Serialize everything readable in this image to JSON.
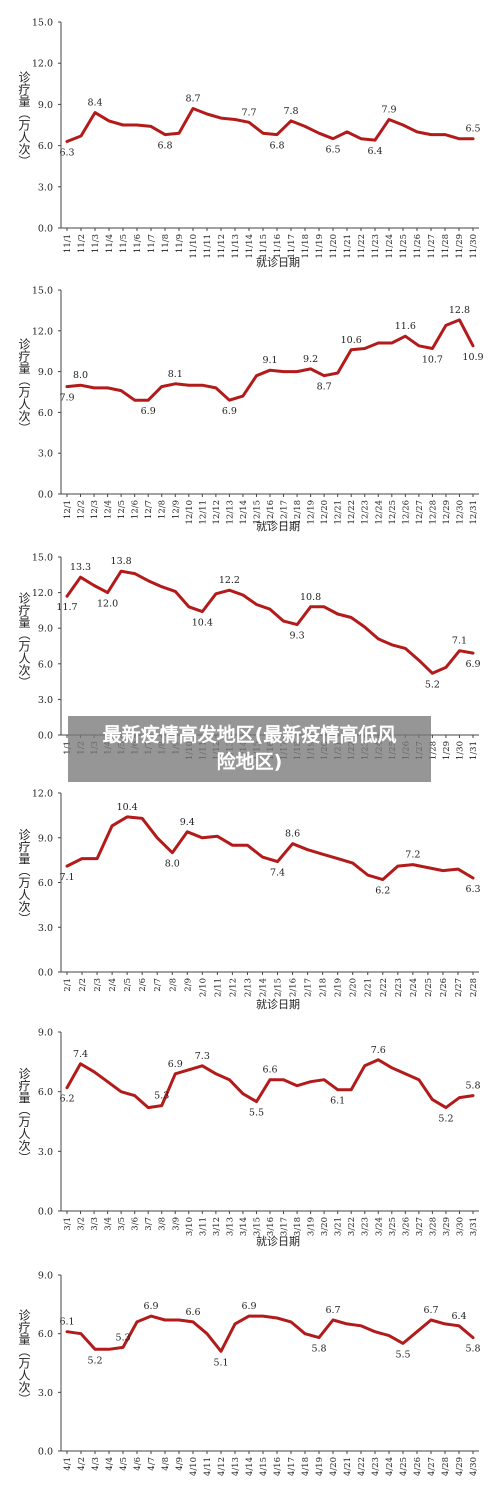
{
  "overlay": {
    "line1": "最新疫情高发地区(最新疫情高低风",
    "line2": "险地区)"
  },
  "chart_data": [
    {
      "type": "line",
      "ylabel": "诊疗量（万人次）",
      "xlabel": "就诊日期",
      "ylim": [
        0,
        15
      ],
      "yticks": [
        "0.0",
        "3.0",
        "6.0",
        "9.0",
        "12.0",
        "15.0"
      ],
      "color": "#b31b1b",
      "categories": [
        "11/1",
        "11/2",
        "11/3",
        "11/4",
        "11/5",
        "11/6",
        "11/7",
        "11/8",
        "11/9",
        "11/10",
        "11/11",
        "11/12",
        "11/13",
        "11/14",
        "11/15",
        "11/16",
        "11/17",
        "11/18",
        "11/19",
        "11/20",
        "11/21",
        "11/22",
        "11/23",
        "11/24",
        "11/25",
        "11/26",
        "11/27",
        "11/28",
        "11/29",
        "11/30"
      ],
      "values": [
        6.3,
        6.7,
        8.4,
        7.8,
        7.5,
        7.5,
        7.4,
        6.8,
        6.9,
        8.7,
        8.3,
        8.0,
        7.9,
        7.7,
        6.9,
        6.8,
        7.8,
        7.4,
        6.9,
        6.5,
        7.0,
        6.5,
        6.4,
        7.9,
        7.5,
        7.0,
        6.8,
        6.8,
        6.5,
        6.5
      ],
      "data_labels": {
        "0": "6.3",
        "2": "8.4",
        "7": "6.8",
        "9": "8.7",
        "13": "7.7",
        "15": "6.8",
        "16": "7.8",
        "19": "6.5",
        "22": "6.4",
        "23": "7.9",
        "29": "6.5"
      }
    },
    {
      "type": "line",
      "ylabel": "诊疗量（万人次）",
      "xlabel": "就诊日期",
      "ylim": [
        0,
        15
      ],
      "yticks": [
        "0.0",
        "3.0",
        "6.0",
        "9.0",
        "12.0",
        "15.0"
      ],
      "color": "#b31b1b",
      "categories": [
        "12/1",
        "12/2",
        "12/3",
        "12/4",
        "12/5",
        "12/6",
        "12/7",
        "12/8",
        "12/9",
        "12/10",
        "12/11",
        "12/12",
        "12/13",
        "12/14",
        "12/15",
        "12/16",
        "12/17",
        "12/18",
        "12/19",
        "12/20",
        "12/21",
        "12/22",
        "12/23",
        "12/24",
        "12/25",
        "12/26",
        "12/27",
        "12/28",
        "12/29",
        "12/30",
        "12/31"
      ],
      "values": [
        7.9,
        8.0,
        7.8,
        7.8,
        7.6,
        6.9,
        6.9,
        7.9,
        8.1,
        8.0,
        8.0,
        7.8,
        6.9,
        7.2,
        8.7,
        9.1,
        9.0,
        9.0,
        9.2,
        8.7,
        8.9,
        10.6,
        10.7,
        11.1,
        11.1,
        11.6,
        10.9,
        10.7,
        12.4,
        12.8,
        10.9
      ],
      "data_labels": {
        "0": "7.9",
        "1": "8.0",
        "6": "6.9",
        "8": "8.1",
        "12": "6.9",
        "15": "9.1",
        "18": "9.2",
        "19": "8.7",
        "21": "10.6",
        "25": "11.6",
        "27": "10.7",
        "29": "12.8",
        "30": "10.9"
      }
    },
    {
      "type": "line",
      "ylabel": "诊疗量（万人次）",
      "xlabel": "",
      "ylim": [
        0,
        15
      ],
      "yticks": [
        "0.0",
        "3.0",
        "6.0",
        "9.0",
        "12.0",
        "15.0"
      ],
      "color": "#b31b1b",
      "categories": [
        "1/1",
        "1/2",
        "1/3",
        "1/4",
        "1/5",
        "1/6",
        "1/7",
        "1/8",
        "1/9",
        "1/10",
        "1/11",
        "1/12",
        "1/13",
        "1/14",
        "1/15",
        "1/16",
        "1/17",
        "1/18",
        "1/19",
        "1/20",
        "1/21",
        "1/22",
        "1/23",
        "1/24",
        "1/25",
        "1/26",
        "1/27",
        "1/28",
        "1/29",
        "1/30",
        "1/31"
      ],
      "values": [
        11.7,
        13.3,
        12.6,
        12.0,
        13.8,
        13.6,
        13.0,
        12.5,
        12.1,
        10.8,
        10.4,
        11.9,
        12.2,
        11.8,
        11.0,
        10.6,
        9.6,
        9.3,
        10.8,
        10.8,
        10.2,
        9.9,
        9.1,
        8.1,
        7.6,
        7.3,
        6.3,
        5.2,
        5.7,
        7.1,
        6.9
      ],
      "data_labels": {
        "0": "11.7",
        "1": "13.3",
        "3": "12.0",
        "4": "13.8",
        "10": "10.4",
        "12": "12.2",
        "17": "9.3",
        "18": "10.8",
        "27": "5.2",
        "29": "7.1",
        "30": "6.9"
      }
    },
    {
      "type": "line",
      "ylabel": "诊疗量（万人次）",
      "xlabel": "就诊日期",
      "ylim": [
        0,
        12
      ],
      "yticks": [
        "0.0",
        "3.0",
        "6.0",
        "9.0",
        "12.0"
      ],
      "color": "#b31b1b",
      "categories": [
        "2/1",
        "2/2",
        "2/3",
        "2/4",
        "2/5",
        "2/6",
        "2/7",
        "2/8",
        "2/9",
        "2/10",
        "2/11",
        "2/12",
        "2/13",
        "2/14",
        "2/15",
        "2/16",
        "2/17",
        "2/18",
        "2/19",
        "2/20",
        "2/21",
        "2/22",
        "2/23",
        "2/24",
        "2/25",
        "2/26",
        "2/27",
        "2/28"
      ],
      "values": [
        7.1,
        7.6,
        7.6,
        9.8,
        10.4,
        10.3,
        9.0,
        8.0,
        9.4,
        9.0,
        9.1,
        8.5,
        8.5,
        7.7,
        7.4,
        8.6,
        8.2,
        7.9,
        7.6,
        7.3,
        6.5,
        6.2,
        7.1,
        7.2,
        7.0,
        6.8,
        6.9,
        6.3
      ],
      "data_labels": {
        "0": "7.1",
        "4": "10.4",
        "7": "8.0",
        "8": "9.4",
        "14": "7.4",
        "15": "8.6",
        "21": "6.2",
        "23": "7.2",
        "27": "6.3"
      }
    },
    {
      "type": "line",
      "ylabel": "诊疗量（万人次）",
      "xlabel": "就诊日期",
      "ylim": [
        0,
        9
      ],
      "yticks": [
        "0.0",
        "3.0",
        "6.0",
        "9.0"
      ],
      "color": "#b31b1b",
      "categories": [
        "3/1",
        "3/2",
        "3/3",
        "3/4",
        "3/5",
        "3/6",
        "3/7",
        "3/8",
        "3/9",
        "3/10",
        "3/11",
        "3/12",
        "3/13",
        "3/14",
        "3/15",
        "3/16",
        "3/17",
        "3/18",
        "3/19",
        "3/20",
        "3/21",
        "3/22",
        "3/23",
        "3/24",
        "3/25",
        "3/26",
        "3/27",
        "3/28",
        "3/29",
        "3/30",
        "3/31"
      ],
      "values": [
        6.2,
        7.4,
        7.0,
        6.5,
        6.0,
        5.8,
        5.2,
        5.3,
        6.9,
        7.1,
        7.3,
        6.9,
        6.6,
        5.9,
        5.5,
        6.6,
        6.6,
        6.3,
        6.5,
        6.6,
        6.1,
        6.1,
        7.3,
        7.6,
        7.2,
        6.9,
        6.6,
        5.6,
        5.2,
        5.7,
        5.8
      ],
      "data_labels": {
        "0": "6.2",
        "1": "7.4",
        "7": "5.3",
        "8": "6.9",
        "10": "7.3",
        "14": "5.5",
        "15": "6.6",
        "20": "6.1",
        "23": "7.6",
        "28": "5.2",
        "30": "5.8"
      }
    },
    {
      "type": "line",
      "ylabel": "诊疗量（万人次）",
      "xlabel": "",
      "ylim": [
        0,
        9
      ],
      "yticks": [
        "0.0",
        "3.0",
        "6.0",
        "9.0"
      ],
      "color": "#b31b1b",
      "categories": [
        "4/1",
        "4/2",
        "4/3",
        "4/4",
        "4/5",
        "4/6",
        "4/7",
        "4/8",
        "4/9",
        "4/10",
        "4/11",
        "4/12",
        "4/13",
        "4/14",
        "4/15",
        "4/16",
        "4/17",
        "4/18",
        "4/19",
        "4/20",
        "4/21",
        "4/22",
        "4/23",
        "4/24",
        "4/25",
        "4/26",
        "4/27",
        "4/28",
        "4/29",
        "4/30"
      ],
      "values": [
        6.1,
        6.0,
        5.2,
        5.2,
        5.3,
        6.6,
        6.9,
        6.7,
        6.7,
        6.6,
        6.0,
        5.1,
        6.5,
        6.9,
        6.9,
        6.8,
        6.6,
        6.0,
        5.8,
        6.7,
        6.5,
        6.4,
        6.1,
        5.9,
        5.5,
        6.1,
        6.7,
        6.5,
        6.4,
        5.8
      ],
      "data_labels": {
        "0": "6.1",
        "2": "5.2",
        "4": "5.3",
        "6": "6.9",
        "9": "6.6",
        "11": "5.1",
        "13": "6.9",
        "18": "5.8",
        "19": "6.7",
        "24": "5.5",
        "26": "6.7",
        "28": "6.4",
        "29": "5.8"
      }
    }
  ]
}
